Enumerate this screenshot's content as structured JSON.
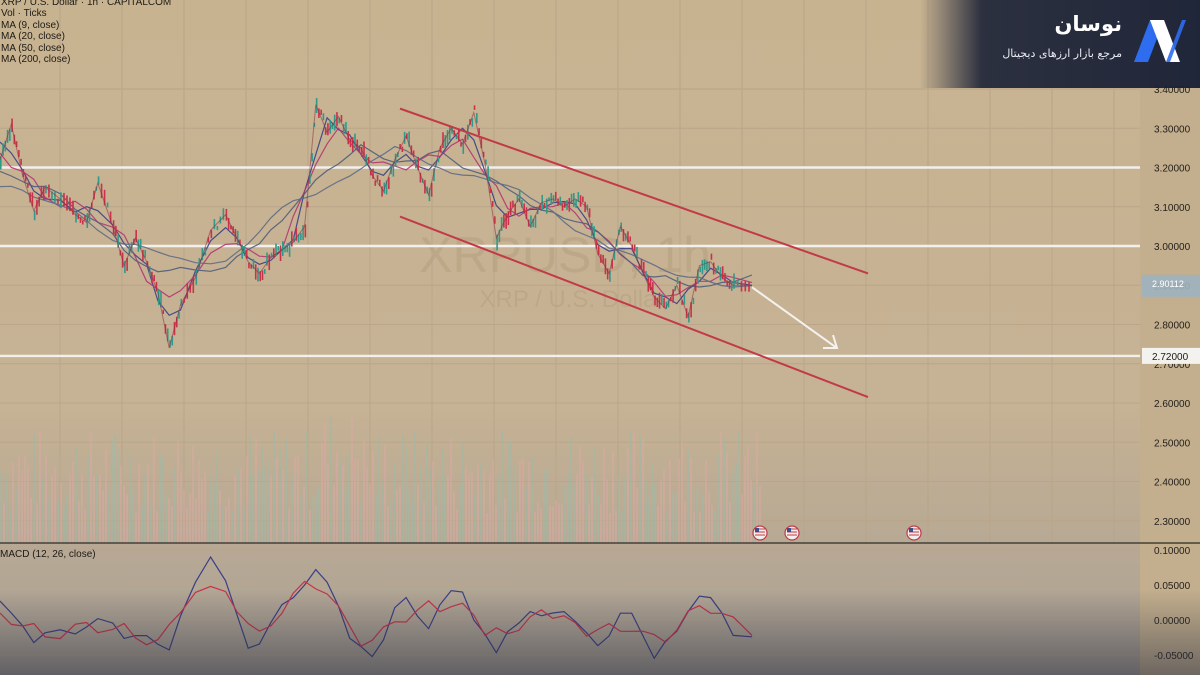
{
  "legend": {
    "symbol_line": "XRP / U.S. Dollar · 1h · CAPITALCOM",
    "vol_line": "Vol · Ticks",
    "indicators": [
      "MA (9, close)",
      "MA (20, close)",
      "MA (50, close)",
      "MA (200, close)"
    ]
  },
  "brand": {
    "name": "نوسان",
    "tagline": "مرجع بازار ارزهای دیجیتال",
    "logo_icon": "nowsan-logo-icon"
  },
  "watermark": {
    "symbol": "XRPUSD, 1h",
    "description": "XRP / U.S. Dollar"
  },
  "macd_label": "MACD (12, 26, close)",
  "colors": {
    "background": "#c8b391",
    "channel": "#c23a48",
    "levels": "#f2f0ec",
    "arrow": "#f4f2ee",
    "ma_fast": "#3a3f86",
    "ma_mid": "#b2366f",
    "ma_slow": "#4f5c7a",
    "candle_up": "#2f9a8a",
    "candle_down": "#c9324a"
  },
  "chart_data": {
    "type": "line",
    "symbol": "XRPUSD",
    "timeframe": "1h",
    "ylim": [
      2.25,
      3.5
    ],
    "price_axis_ticks": [
      "3.40000",
      "3.30000",
      "3.20000",
      "3.10000",
      "3.00000",
      "2.90000",
      "2.80000",
      "2.70000",
      "2.60000",
      "2.50000",
      "2.40000",
      "2.30000"
    ],
    "last_price_label": "2.90112",
    "highlighted_level_label": "2.72000",
    "horizontal_levels": [
      3.2,
      3.0,
      2.72
    ],
    "channel": {
      "upper": [
        [
          0.0,
          3.35
        ],
        [
          1.0,
          2.93
        ]
      ],
      "lower": [
        [
          0.0,
          3.075
        ],
        [
          1.0,
          2.615
        ]
      ]
    },
    "projection_arrow": [
      [
        0.0,
        2.895
      ],
      [
        1.0,
        2.74
      ]
    ],
    "price_path": [
      {
        "t": 0.0,
        "p": 3.22
      },
      {
        "t": 0.015,
        "p": 3.31
      },
      {
        "t": 0.03,
        "p": 3.18
      },
      {
        "t": 0.045,
        "p": 3.09
      },
      {
        "t": 0.06,
        "p": 3.15
      },
      {
        "t": 0.08,
        "p": 3.12
      },
      {
        "t": 0.1,
        "p": 3.08
      },
      {
        "t": 0.115,
        "p": 3.06
      },
      {
        "t": 0.13,
        "p": 3.16
      },
      {
        "t": 0.15,
        "p": 3.05
      },
      {
        "t": 0.165,
        "p": 2.95
      },
      {
        "t": 0.18,
        "p": 3.02
      },
      {
        "t": 0.195,
        "p": 2.96
      },
      {
        "t": 0.21,
        "p": 2.88
      },
      {
        "t": 0.225,
        "p": 2.74
      },
      {
        "t": 0.24,
        "p": 2.85
      },
      {
        "t": 0.26,
        "p": 2.92
      },
      {
        "t": 0.28,
        "p": 3.04
      },
      {
        "t": 0.3,
        "p": 3.08
      },
      {
        "t": 0.315,
        "p": 3.02
      },
      {
        "t": 0.33,
        "p": 2.96
      },
      {
        "t": 0.345,
        "p": 2.93
      },
      {
        "t": 0.36,
        "p": 2.97
      },
      {
        "t": 0.375,
        "p": 2.99
      },
      {
        "t": 0.39,
        "p": 3.01
      },
      {
        "t": 0.405,
        "p": 3.05
      },
      {
        "t": 0.42,
        "p": 3.36
      },
      {
        "t": 0.435,
        "p": 3.29
      },
      {
        "t": 0.45,
        "p": 3.33
      },
      {
        "t": 0.465,
        "p": 3.27
      },
      {
        "t": 0.48,
        "p": 3.25
      },
      {
        "t": 0.495,
        "p": 3.18
      },
      {
        "t": 0.51,
        "p": 3.14
      },
      {
        "t": 0.525,
        "p": 3.22
      },
      {
        "t": 0.54,
        "p": 3.28
      },
      {
        "t": 0.555,
        "p": 3.2
      },
      {
        "t": 0.57,
        "p": 3.13
      },
      {
        "t": 0.585,
        "p": 3.25
      },
      {
        "t": 0.6,
        "p": 3.3
      },
      {
        "t": 0.615,
        "p": 3.26
      },
      {
        "t": 0.63,
        "p": 3.34
      },
      {
        "t": 0.645,
        "p": 3.21
      },
      {
        "t": 0.66,
        "p": 3.02
      },
      {
        "t": 0.675,
        "p": 3.08
      },
      {
        "t": 0.69,
        "p": 3.12
      },
      {
        "t": 0.705,
        "p": 3.05
      },
      {
        "t": 0.72,
        "p": 3.11
      },
      {
        "t": 0.735,
        "p": 3.12
      },
      {
        "t": 0.75,
        "p": 3.1
      },
      {
        "t": 0.765,
        "p": 3.12
      },
      {
        "t": 0.78,
        "p": 3.1
      },
      {
        "t": 0.795,
        "p": 2.98
      },
      {
        "t": 0.81,
        "p": 2.93
      },
      {
        "t": 0.825,
        "p": 3.05
      },
      {
        "t": 0.84,
        "p": 3.0
      },
      {
        "t": 0.855,
        "p": 2.93
      },
      {
        "t": 0.87,
        "p": 2.87
      },
      {
        "t": 0.885,
        "p": 2.84
      },
      {
        "t": 0.9,
        "p": 2.9
      },
      {
        "t": 0.915,
        "p": 2.82
      },
      {
        "t": 0.93,
        "p": 2.95
      },
      {
        "t": 0.945,
        "p": 2.96
      },
      {
        "t": 0.96,
        "p": 2.92
      },
      {
        "t": 0.975,
        "p": 2.9
      },
      {
        "t": 1.0,
        "p": 2.9
      }
    ],
    "macd_axis_ticks": [
      "0.10000",
      "0.05000",
      "0.00000",
      "-0.05000"
    ],
    "macd_ylim": [
      -0.065,
      0.105
    ]
  }
}
